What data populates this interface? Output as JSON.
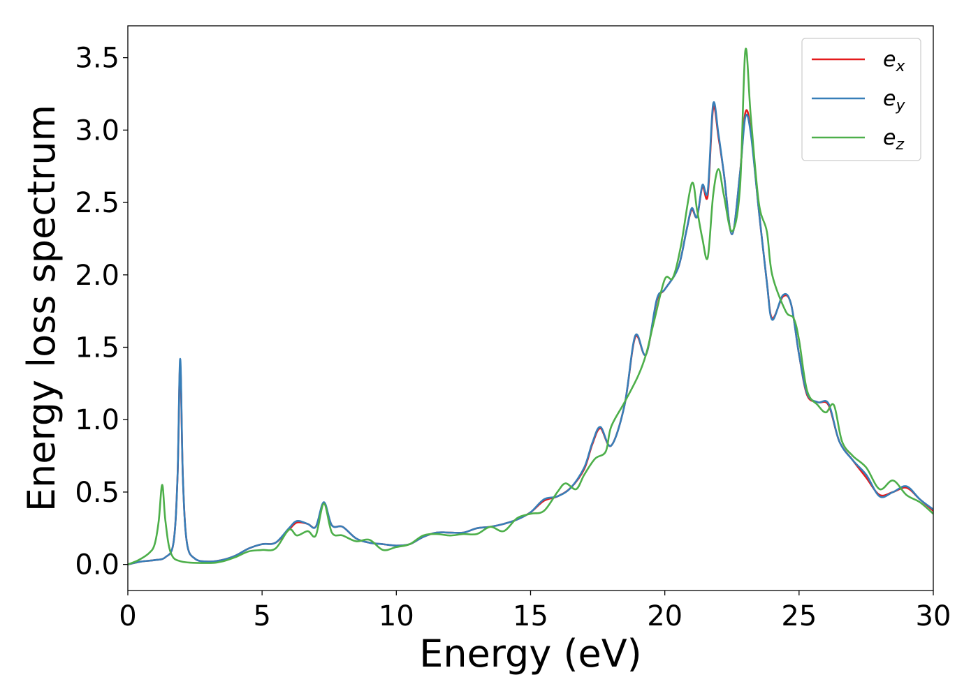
{
  "chart_data": {
    "type": "line",
    "title": "",
    "xlabel": "Energy (eV)",
    "ylabel": "Energy loss spectrum",
    "xlim": [
      0,
      30
    ],
    "ylim": [
      -0.18,
      3.72
    ],
    "xticks": [
      0,
      5,
      10,
      15,
      20,
      25,
      30
    ],
    "xtick_labels": [
      "0",
      "5",
      "10",
      "15",
      "20",
      "25",
      "30"
    ],
    "yticks": [
      0.0,
      0.5,
      1.0,
      1.5,
      2.0,
      2.5,
      3.0,
      3.5
    ],
    "ytick_labels": [
      "0.0",
      "0.5",
      "1.0",
      "1.5",
      "2.0",
      "2.5",
      "3.0",
      "3.5"
    ],
    "grid": false,
    "legend_position": "top-right",
    "series": [
      {
        "name": "e_x",
        "legend_base": "e",
        "legend_sub": "x",
        "color": "#e41a1c",
        "points": [
          [
            0,
            0
          ],
          [
            0.5,
            0.02
          ],
          [
            1.0,
            0.03
          ],
          [
            1.4,
            0.05
          ],
          [
            1.7,
            0.15
          ],
          [
            1.85,
            0.6
          ],
          [
            1.95,
            1.38
          ],
          [
            2.05,
            0.6
          ],
          [
            2.2,
            0.15
          ],
          [
            2.5,
            0.04
          ],
          [
            3.0,
            0.02
          ],
          [
            3.5,
            0.03
          ],
          [
            4.0,
            0.06
          ],
          [
            4.5,
            0.11
          ],
          [
            5.0,
            0.14
          ],
          [
            5.5,
            0.15
          ],
          [
            6.0,
            0.24
          ],
          [
            6.3,
            0.29
          ],
          [
            6.7,
            0.28
          ],
          [
            7.0,
            0.26
          ],
          [
            7.3,
            0.42
          ],
          [
            7.6,
            0.27
          ],
          [
            8.0,
            0.26
          ],
          [
            8.5,
            0.18
          ],
          [
            9.0,
            0.15
          ],
          [
            9.5,
            0.14
          ],
          [
            10.0,
            0.13
          ],
          [
            10.5,
            0.14
          ],
          [
            11.0,
            0.19
          ],
          [
            11.5,
            0.22
          ],
          [
            12.0,
            0.22
          ],
          [
            12.5,
            0.22
          ],
          [
            13.0,
            0.25
          ],
          [
            13.5,
            0.26
          ],
          [
            14.0,
            0.28
          ],
          [
            14.5,
            0.31
          ],
          [
            15.0,
            0.36
          ],
          [
            15.5,
            0.44
          ],
          [
            16.0,
            0.47
          ],
          [
            16.5,
            0.53
          ],
          [
            17.0,
            0.66
          ],
          [
            17.3,
            0.83
          ],
          [
            17.6,
            0.94
          ],
          [
            18.0,
            0.82
          ],
          [
            18.5,
            1.1
          ],
          [
            18.9,
            1.57
          ],
          [
            19.3,
            1.45
          ],
          [
            19.7,
            1.82
          ],
          [
            20.0,
            1.9
          ],
          [
            20.5,
            2.05
          ],
          [
            20.8,
            2.3
          ],
          [
            21.0,
            2.45
          ],
          [
            21.2,
            2.4
          ],
          [
            21.4,
            2.61
          ],
          [
            21.6,
            2.55
          ],
          [
            21.8,
            3.15
          ],
          [
            22.0,
            2.95
          ],
          [
            22.2,
            2.7
          ],
          [
            22.5,
            2.28
          ],
          [
            22.8,
            2.7
          ],
          [
            23.0,
            3.12
          ],
          [
            23.2,
            3.0
          ],
          [
            23.5,
            2.45
          ],
          [
            23.8,
            1.95
          ],
          [
            24.0,
            1.7
          ],
          [
            24.4,
            1.85
          ],
          [
            24.7,
            1.8
          ],
          [
            25.0,
            1.45
          ],
          [
            25.3,
            1.17
          ],
          [
            25.7,
            1.12
          ],
          [
            26.1,
            1.1
          ],
          [
            26.5,
            0.85
          ],
          [
            27.0,
            0.72
          ],
          [
            27.5,
            0.6
          ],
          [
            28.0,
            0.48
          ],
          [
            28.5,
            0.5
          ],
          [
            29.0,
            0.53
          ],
          [
            29.5,
            0.45
          ],
          [
            30.0,
            0.37
          ]
        ]
      },
      {
        "name": "e_y",
        "legend_base": "e",
        "legend_sub": "y",
        "color": "#377eb8",
        "points": [
          [
            0,
            0
          ],
          [
            0.5,
            0.02
          ],
          [
            1.0,
            0.03
          ],
          [
            1.4,
            0.05
          ],
          [
            1.7,
            0.15
          ],
          [
            1.85,
            0.6
          ],
          [
            1.95,
            1.42
          ],
          [
            2.05,
            0.6
          ],
          [
            2.2,
            0.15
          ],
          [
            2.5,
            0.04
          ],
          [
            3.0,
            0.02
          ],
          [
            3.5,
            0.03
          ],
          [
            4.0,
            0.06
          ],
          [
            4.5,
            0.11
          ],
          [
            5.0,
            0.14
          ],
          [
            5.5,
            0.15
          ],
          [
            6.0,
            0.25
          ],
          [
            6.3,
            0.3
          ],
          [
            6.7,
            0.28
          ],
          [
            7.0,
            0.26
          ],
          [
            7.3,
            0.43
          ],
          [
            7.6,
            0.27
          ],
          [
            8.0,
            0.26
          ],
          [
            8.5,
            0.18
          ],
          [
            9.0,
            0.15
          ],
          [
            9.5,
            0.14
          ],
          [
            10.0,
            0.13
          ],
          [
            10.5,
            0.14
          ],
          [
            11.0,
            0.19
          ],
          [
            11.5,
            0.22
          ],
          [
            12.0,
            0.22
          ],
          [
            12.5,
            0.22
          ],
          [
            13.0,
            0.25
          ],
          [
            13.5,
            0.26
          ],
          [
            14.0,
            0.28
          ],
          [
            14.5,
            0.31
          ],
          [
            15.0,
            0.36
          ],
          [
            15.5,
            0.45
          ],
          [
            16.0,
            0.47
          ],
          [
            16.5,
            0.53
          ],
          [
            17.0,
            0.67
          ],
          [
            17.3,
            0.84
          ],
          [
            17.6,
            0.95
          ],
          [
            18.0,
            0.82
          ],
          [
            18.5,
            1.1
          ],
          [
            18.9,
            1.58
          ],
          [
            19.3,
            1.45
          ],
          [
            19.7,
            1.83
          ],
          [
            20.0,
            1.9
          ],
          [
            20.5,
            2.05
          ],
          [
            20.8,
            2.3
          ],
          [
            21.0,
            2.46
          ],
          [
            21.2,
            2.4
          ],
          [
            21.4,
            2.62
          ],
          [
            21.6,
            2.58
          ],
          [
            21.8,
            3.18
          ],
          [
            22.0,
            2.97
          ],
          [
            22.2,
            2.7
          ],
          [
            22.5,
            2.28
          ],
          [
            22.8,
            2.7
          ],
          [
            23.0,
            3.09
          ],
          [
            23.2,
            2.98
          ],
          [
            23.5,
            2.45
          ],
          [
            23.8,
            1.95
          ],
          [
            24.0,
            1.69
          ],
          [
            24.4,
            1.86
          ],
          [
            24.7,
            1.8
          ],
          [
            25.0,
            1.45
          ],
          [
            25.3,
            1.18
          ],
          [
            25.7,
            1.12
          ],
          [
            26.1,
            1.11
          ],
          [
            26.5,
            0.85
          ],
          [
            27.0,
            0.72
          ],
          [
            27.5,
            0.62
          ],
          [
            28.0,
            0.47
          ],
          [
            28.5,
            0.5
          ],
          [
            29.0,
            0.54
          ],
          [
            29.5,
            0.45
          ],
          [
            30.0,
            0.38
          ]
        ]
      },
      {
        "name": "e_z",
        "legend_base": "e",
        "legend_sub": "z",
        "color": "#4daf4a",
        "points": [
          [
            0,
            0
          ],
          [
            0.4,
            0.03
          ],
          [
            0.8,
            0.08
          ],
          [
            1.0,
            0.14
          ],
          [
            1.15,
            0.3
          ],
          [
            1.28,
            0.55
          ],
          [
            1.4,
            0.3
          ],
          [
            1.6,
            0.08
          ],
          [
            2.0,
            0.02
          ],
          [
            3.0,
            0.01
          ],
          [
            3.5,
            0.02
          ],
          [
            4.0,
            0.05
          ],
          [
            4.5,
            0.09
          ],
          [
            5.0,
            0.1
          ],
          [
            5.5,
            0.11
          ],
          [
            6.0,
            0.24
          ],
          [
            6.3,
            0.2
          ],
          [
            6.7,
            0.23
          ],
          [
            7.0,
            0.2
          ],
          [
            7.3,
            0.42
          ],
          [
            7.6,
            0.22
          ],
          [
            8.0,
            0.2
          ],
          [
            8.5,
            0.16
          ],
          [
            9.0,
            0.17
          ],
          [
            9.5,
            0.1
          ],
          [
            10.0,
            0.12
          ],
          [
            10.5,
            0.14
          ],
          [
            11.0,
            0.2
          ],
          [
            11.5,
            0.21
          ],
          [
            12.0,
            0.2
          ],
          [
            12.5,
            0.21
          ],
          [
            13.0,
            0.21
          ],
          [
            13.5,
            0.26
          ],
          [
            14.0,
            0.23
          ],
          [
            14.5,
            0.32
          ],
          [
            15.0,
            0.35
          ],
          [
            15.5,
            0.37
          ],
          [
            16.0,
            0.5
          ],
          [
            16.3,
            0.56
          ],
          [
            16.7,
            0.52
          ],
          [
            17.0,
            0.62
          ],
          [
            17.4,
            0.73
          ],
          [
            17.8,
            0.78
          ],
          [
            18.0,
            0.95
          ],
          [
            18.5,
            1.12
          ],
          [
            19.0,
            1.3
          ],
          [
            19.3,
            1.45
          ],
          [
            19.6,
            1.68
          ],
          [
            20.0,
            1.97
          ],
          [
            20.3,
            1.98
          ],
          [
            20.6,
            2.2
          ],
          [
            21.0,
            2.63
          ],
          [
            21.2,
            2.45
          ],
          [
            21.4,
            2.25
          ],
          [
            21.6,
            2.12
          ],
          [
            21.8,
            2.55
          ],
          [
            22.0,
            2.73
          ],
          [
            22.2,
            2.55
          ],
          [
            22.5,
            2.3
          ],
          [
            22.8,
            2.6
          ],
          [
            23.0,
            3.55
          ],
          [
            23.2,
            3.1
          ],
          [
            23.5,
            2.5
          ],
          [
            23.8,
            2.3
          ],
          [
            24.0,
            2.0
          ],
          [
            24.5,
            1.75
          ],
          [
            24.8,
            1.7
          ],
          [
            25.0,
            1.55
          ],
          [
            25.3,
            1.2
          ],
          [
            25.7,
            1.1
          ],
          [
            26.0,
            1.05
          ],
          [
            26.3,
            1.1
          ],
          [
            26.6,
            0.85
          ],
          [
            27.0,
            0.75
          ],
          [
            27.5,
            0.67
          ],
          [
            28.0,
            0.52
          ],
          [
            28.5,
            0.58
          ],
          [
            29.0,
            0.48
          ],
          [
            29.5,
            0.43
          ],
          [
            30.0,
            0.35
          ]
        ]
      }
    ]
  }
}
